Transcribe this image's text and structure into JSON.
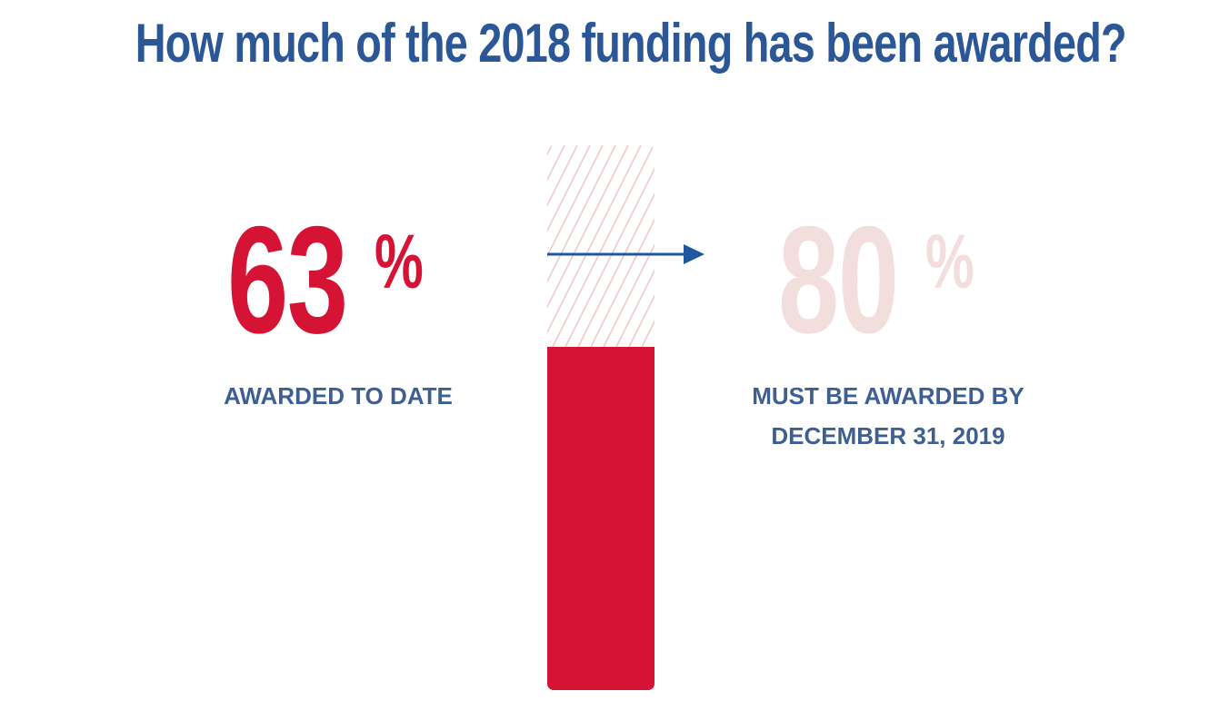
{
  "title": "How much of the 2018 funding has been awarded?",
  "colors": {
    "title": "#2b5796",
    "awarded": "#d51334",
    "target": "#f2dfdd",
    "hatch": "#f0c9c9",
    "caption": "#3d5f93",
    "arrow": "#1f57a0"
  },
  "awarded": {
    "number": "63",
    "percent_sign": "%",
    "caption": "AWARDED TO DATE"
  },
  "target": {
    "number": "80",
    "percent_sign": "%",
    "caption_line1": "MUST BE AWARDED BY",
    "caption_line2": "DECEMBER 31, 2019"
  },
  "chart_data": {
    "type": "bar",
    "categories": [
      "Awarded to date",
      "Must be awarded by December 31, 2019"
    ],
    "values": [
      63,
      80
    ],
    "ylim": [
      0,
      100
    ],
    "title": "How much of the 2018 funding has been awarded?",
    "xlabel": "",
    "ylabel": ""
  }
}
